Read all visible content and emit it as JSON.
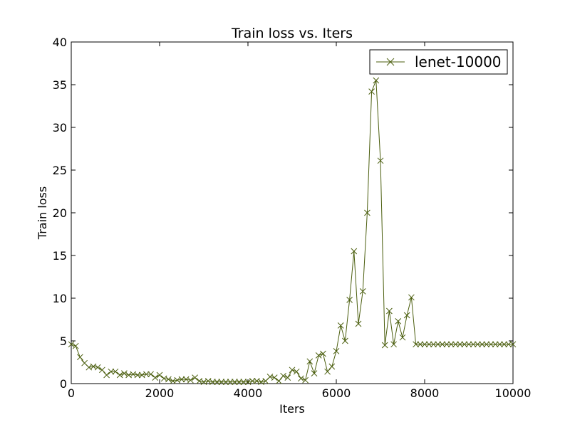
{
  "chart_data": {
    "type": "line",
    "title": "Train loss  vs. Iters",
    "xlabel": "Iters",
    "ylabel": "Train loss",
    "xlim": [
      0,
      10000
    ],
    "ylim": [
      0,
      40
    ],
    "xticks": [
      0,
      2000,
      4000,
      6000,
      8000,
      10000
    ],
    "xtick_labels": [
      "0",
      "2000",
      "4000",
      "6000",
      "8000",
      "10000"
    ],
    "yticks": [
      0,
      5,
      10,
      15,
      20,
      25,
      30,
      35,
      40
    ],
    "ytick_labels": [
      "0",
      "5",
      "10",
      "15",
      "20",
      "25",
      "30",
      "35",
      "40"
    ],
    "grid": false,
    "legend_position": "top-right",
    "series": [
      {
        "name": "lenet-10000",
        "color": "#4b5e0e",
        "marker": "x",
        "x": [
          0,
          100,
          200,
          300,
          400,
          500,
          600,
          700,
          800,
          900,
          1000,
          1100,
          1200,
          1300,
          1400,
          1500,
          1600,
          1700,
          1800,
          1900,
          2000,
          2100,
          2200,
          2300,
          2400,
          2500,
          2600,
          2700,
          2800,
          2900,
          3000,
          3100,
          3200,
          3300,
          3400,
          3500,
          3600,
          3700,
          3800,
          3900,
          4000,
          4100,
          4200,
          4300,
          4400,
          4500,
          4600,
          4700,
          4800,
          4900,
          5000,
          5100,
          5200,
          5300,
          5400,
          5500,
          5600,
          5700,
          5800,
          5900,
          6000,
          6100,
          6200,
          6300,
          6400,
          6500,
          6600,
          6700,
          6800,
          6900,
          7000,
          7100,
          7200,
          7300,
          7400,
          7500,
          7600,
          7700,
          7800,
          7900,
          8000,
          8100,
          8200,
          8300,
          8400,
          8500,
          8600,
          8700,
          8800,
          8900,
          9000,
          9100,
          9200,
          9300,
          9400,
          9500,
          9600,
          9700,
          9800,
          9900,
          10000
        ],
        "y": [
          4.6,
          4.4,
          3.1,
          2.4,
          1.9,
          2.0,
          1.9,
          1.6,
          1.0,
          1.4,
          1.4,
          1.0,
          1.2,
          1.0,
          1.1,
          1.0,
          1.0,
          1.1,
          1.1,
          0.7,
          1.0,
          0.6,
          0.5,
          0.3,
          0.4,
          0.5,
          0.5,
          0.4,
          0.7,
          0.3,
          0.2,
          0.3,
          0.2,
          0.2,
          0.2,
          0.2,
          0.2,
          0.2,
          0.2,
          0.2,
          0.2,
          0.3,
          0.3,
          0.2,
          0.3,
          0.8,
          0.7,
          0.3,
          0.9,
          0.7,
          1.6,
          1.4,
          0.6,
          0.4,
          2.6,
          1.2,
          3.3,
          3.5,
          1.4,
          2.0,
          3.8,
          6.8,
          5.0,
          9.8,
          15.5,
          7.0,
          10.8,
          20.0,
          34.2,
          35.5,
          26.1,
          4.5,
          8.5,
          4.6,
          7.3,
          5.4,
          8.0,
          10.1,
          4.6,
          4.6,
          4.6,
          4.6,
          4.6,
          4.6,
          4.6,
          4.6,
          4.6,
          4.6,
          4.6,
          4.6,
          4.6,
          4.6,
          4.6,
          4.6,
          4.6,
          4.6,
          4.6,
          4.6,
          4.6,
          4.6,
          4.6
        ]
      }
    ]
  }
}
